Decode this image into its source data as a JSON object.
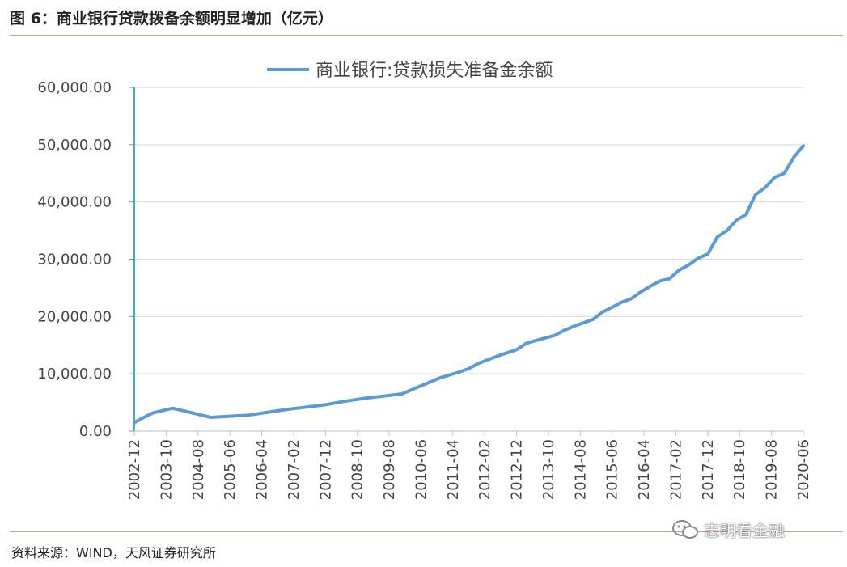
{
  "header": {
    "title": "图 6：商业银行贷款拨备余额明显增加（亿元）"
  },
  "footer": {
    "source": "资料来源：WIND，天风证券研究所",
    "watermark": "志明看金融",
    "watermark_icon": "wechat-icon"
  },
  "colors": {
    "series": "#5b9bd5",
    "rule": "#d9a06a",
    "yaxis": "#3ab0c0",
    "grid": "#d9d9d9"
  },
  "chart_data": {
    "type": "line",
    "title": "",
    "xlabel": "",
    "ylabel": "",
    "ylim": [
      0,
      60000
    ],
    "yticks": [
      "0.00",
      "10,000.00",
      "20,000.00",
      "30,000.00",
      "40,000.00",
      "50,000.00",
      "60,000.00"
    ],
    "xtick_labels": [
      "2002-12",
      "2003-10",
      "2004-08",
      "2005-06",
      "2006-04",
      "2007-02",
      "2007-12",
      "2008-10",
      "2009-08",
      "2010-06",
      "2011-04",
      "2012-02",
      "2012-12",
      "2013-10",
      "2014-08",
      "2015-06",
      "2016-04",
      "2017-02",
      "2017-12",
      "2018-10",
      "2019-08",
      "2020-06"
    ],
    "grid": true,
    "legend_position": "top-center",
    "series": [
      {
        "name": "商业银行:贷款损失准备金余额",
        "points": [
          [
            "2002-12",
            1500
          ],
          [
            "2003-03",
            2400
          ],
          [
            "2003-06",
            3200
          ],
          [
            "2003-12",
            4000
          ],
          [
            "2004-06",
            3200
          ],
          [
            "2004-12",
            2400
          ],
          [
            "2005-06",
            2600
          ],
          [
            "2005-12",
            2800
          ],
          [
            "2006-06",
            3300
          ],
          [
            "2006-12",
            3800
          ],
          [
            "2007-06",
            4200
          ],
          [
            "2007-12",
            4600
          ],
          [
            "2008-06",
            5200
          ],
          [
            "2008-12",
            5700
          ],
          [
            "2009-06",
            6100
          ],
          [
            "2009-12",
            6500
          ],
          [
            "2010-06",
            7900
          ],
          [
            "2010-12",
            9300
          ],
          [
            "2011-06",
            10300
          ],
          [
            "2011-09",
            10900
          ],
          [
            "2011-12",
            11800
          ],
          [
            "2012-06",
            13100
          ],
          [
            "2012-12",
            14200
          ],
          [
            "2013-03",
            15300
          ],
          [
            "2013-06",
            15800
          ],
          [
            "2013-12",
            16700
          ],
          [
            "2014-03",
            17600
          ],
          [
            "2014-06",
            18300
          ],
          [
            "2014-12",
            19500
          ],
          [
            "2015-03",
            20800
          ],
          [
            "2015-06",
            21600
          ],
          [
            "2015-09",
            22500
          ],
          [
            "2015-12",
            23100
          ],
          [
            "2016-03",
            24300
          ],
          [
            "2016-06",
            25300
          ],
          [
            "2016-09",
            26200
          ],
          [
            "2016-12",
            26600
          ],
          [
            "2017-03",
            28100
          ],
          [
            "2017-06",
            29000
          ],
          [
            "2017-09",
            30200
          ],
          [
            "2017-12",
            30900
          ],
          [
            "2018-03",
            33900
          ],
          [
            "2018-06",
            35000
          ],
          [
            "2018-09",
            36800
          ],
          [
            "2018-12",
            37800
          ],
          [
            "2019-03",
            41300
          ],
          [
            "2019-06",
            42500
          ],
          [
            "2019-09",
            44300
          ],
          [
            "2019-12",
            45000
          ],
          [
            "2020-03",
            47800
          ],
          [
            "2020-06",
            49800
          ]
        ]
      }
    ]
  }
}
